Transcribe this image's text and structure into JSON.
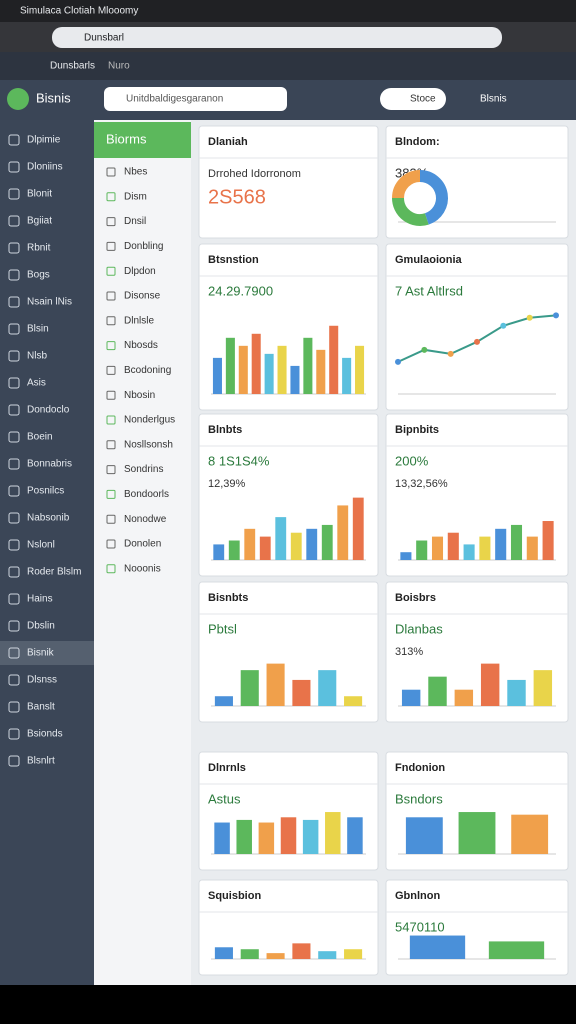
{
  "browser": {
    "tab_title": "Simulaca Clotiah Mlooomy",
    "url": "Dunsbarl",
    "bookmarks": [
      "Dunsbarls",
      "Nuro"
    ]
  },
  "header": {
    "brand": "Bisnis",
    "search": "Unitdbaldigesgaranon",
    "button": "Stoce",
    "user": "Blsnis"
  },
  "sidebar": {
    "items": [
      "Dlpimie",
      "Dloniins",
      "Blonit",
      "Bgiiat",
      "Rbnit",
      "Bogs",
      "Nsain lNis",
      "Blsin",
      "Nlsb",
      "Asis",
      "Dondoclo",
      "Boein",
      "Bonnabris",
      "Posnilcs",
      "Nabsonib",
      "Nslonl",
      "Roder Blslm",
      "Hains",
      "Dbslin",
      "Bisnik",
      "Dlsnss",
      "Banslt",
      "Bsionds",
      "Blsnlrt"
    ],
    "active": 19
  },
  "subnav": {
    "title": "Biorms",
    "items": [
      "Nbes",
      "Dism",
      "Dnsil",
      "Donbling",
      "Dlpdon",
      "Disonse",
      "Dlnlsle",
      "Nbosds",
      "Bcodoning",
      "Nbosin",
      "Nonderlgus",
      "Nosllsonsh",
      "Sondrins",
      "Bondoorls",
      "Nonodwe",
      "Donolen",
      "Nooonis"
    ]
  },
  "palette": [
    "#4a90d9",
    "#5cb85c",
    "#f0a04b",
    "#e8734a",
    "#5bc0de",
    "#e9d44a"
  ],
  "ylim": [
    0,
    100
  ],
  "cards": [
    {
      "title": "Dlaniah",
      "headline": "2S568",
      "subtitle": "Drrohed Idorronom"
    },
    {
      "title": "Blndom:",
      "headline": "383%",
      "chart": {
        "type": "donut",
        "values": [
          45,
          30,
          25
        ]
      }
    },
    {
      "title": "Btsnstion",
      "headline": "24.29.7900",
      "chart": {
        "type": "bar",
        "values": [
          45,
          70,
          60,
          75,
          50,
          60,
          35,
          70,
          55,
          85,
          45,
          60
        ]
      }
    },
    {
      "title": "Gmulaoionia",
      "headline": "7 Ast Altlrsd",
      "chart": {
        "type": "line",
        "values": [
          40,
          55,
          50,
          65,
          85,
          95,
          98
        ]
      }
    },
    {
      "title": "Blnbts",
      "headline": "8 1S1S4%",
      "subtitle": "12,39%",
      "chart": {
        "type": "bar",
        "values": [
          20,
          25,
          40,
          30,
          55,
          35,
          40,
          45,
          70,
          80
        ]
      }
    },
    {
      "title": "Bipnbits",
      "headline": "200%",
      "subtitle": "13,32,56%",
      "chart": {
        "type": "bar",
        "values": [
          10,
          25,
          30,
          35,
          20,
          30,
          40,
          45,
          30,
          50
        ]
      }
    },
    {
      "title": "Bisnbts",
      "headline": "Pbtsl",
      "chart": {
        "type": "bar",
        "values": [
          15,
          55,
          65,
          40,
          55,
          15
        ]
      }
    },
    {
      "title": "Boisbrs",
      "headline": "Dlanbas",
      "subtitle": "313%",
      "chart": {
        "type": "bar",
        "values": [
          25,
          45,
          25,
          65,
          40,
          55
        ]
      }
    },
    {
      "title": "Dlnrnls",
      "headline": "Astus",
      "chart": {
        "type": "bar",
        "values": [
          60,
          65,
          60,
          70,
          65,
          80,
          70
        ]
      }
    },
    {
      "title": "Fndonion",
      "headline": "Bsndors",
      "chart": {
        "type": "bar",
        "values": [
          70,
          80,
          75
        ]
      }
    },
    {
      "title": "Squisbion",
      "chart": {
        "type": "bar",
        "values": [
          30,
          25,
          15,
          40,
          20,
          25
        ]
      }
    },
    {
      "title": "Gbnlnon",
      "headline": "5470110",
      "chart": {
        "type": "bar",
        "values": [
          60,
          45
        ]
      }
    }
  ]
}
